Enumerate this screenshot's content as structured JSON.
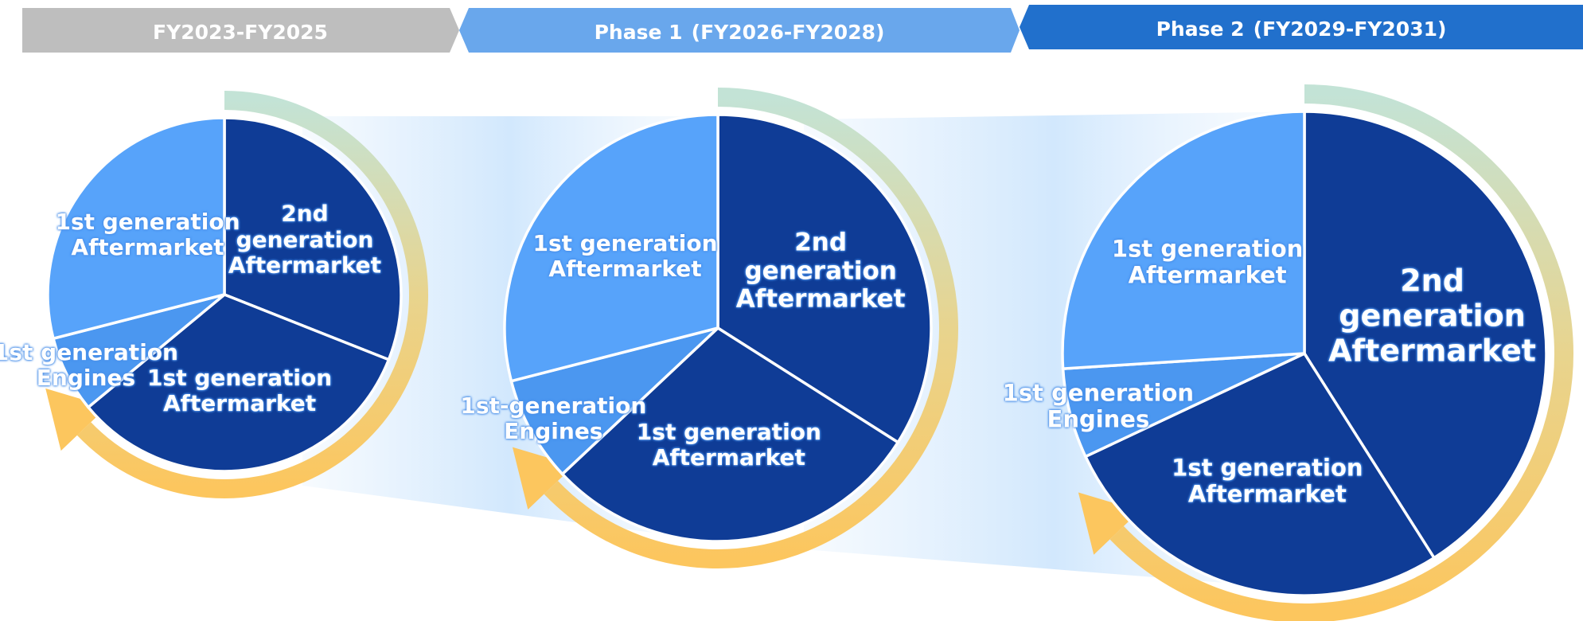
{
  "chart_data": [
    {
      "type": "pie",
      "title": "FY2023-FY2025",
      "categories": [
        "2nd generation Aftermarket",
        "1st generation Aftermarket",
        "1st generation Engines",
        "1st generation Aftermarket"
      ],
      "values": [
        31,
        33,
        7,
        29
      ],
      "colors": [
        "#0f3c96",
        "#0f3c96",
        "#4b97f0",
        "#57a3fa"
      ]
    },
    {
      "type": "pie",
      "title": "Phase 1",
      "subtitle": "(FY2026-FY2028)",
      "categories": [
        "2nd generation Aftermarket",
        "1st generation Aftermarket",
        "1st-generation Engines",
        "1st generation Aftermarket"
      ],
      "values": [
        34,
        29,
        8,
        29
      ],
      "colors": [
        "#0f3c96",
        "#0f3c96",
        "#4b97f0",
        "#57a3fa"
      ]
    },
    {
      "type": "pie",
      "title": "Phase 2",
      "subtitle": "(FY2029-FY2031)",
      "categories": [
        "2nd generation Aftermarket",
        "1st generation Aftermarket",
        "1st generation Engines",
        "1st generation Aftermarket"
      ],
      "values": [
        41,
        27,
        6,
        26
      ],
      "colors": [
        "#0f3c96",
        "#0f3c96",
        "#4b97f0",
        "#57a3fa"
      ]
    }
  ]
}
